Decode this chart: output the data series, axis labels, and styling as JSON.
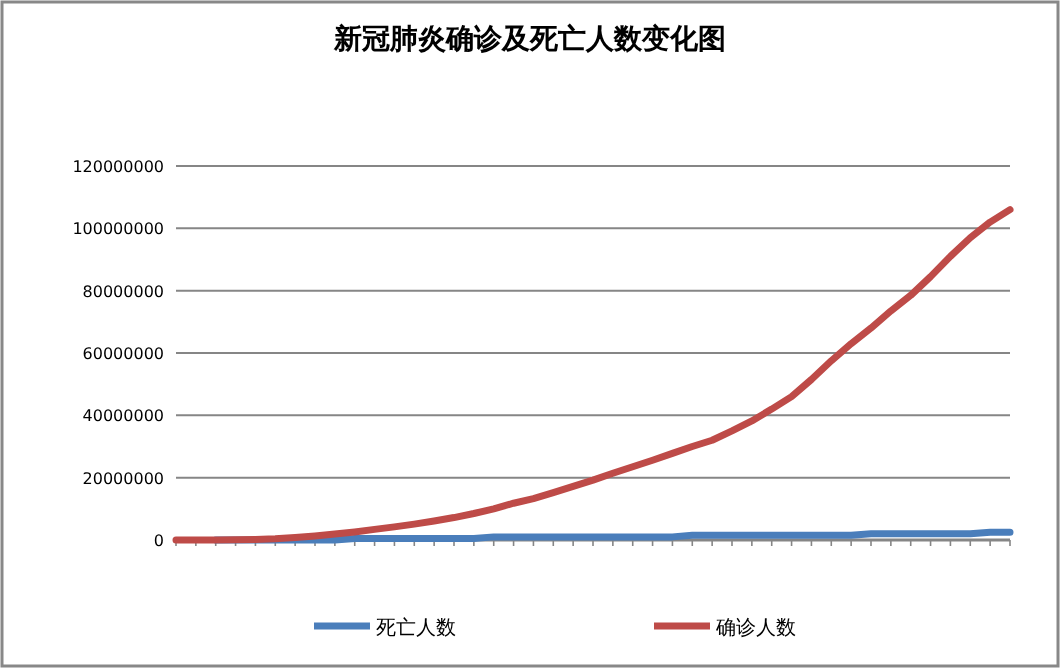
{
  "chart_data": {
    "type": "line",
    "title": "新冠肺炎确诊及死亡人数变化图",
    "categories": [
      null,
      null,
      null,
      null,
      null,
      null,
      null,
      null,
      null,
      null,
      null,
      null,
      null,
      null,
      null,
      null,
      null,
      null,
      null,
      null,
      null,
      null,
      null,
      null,
      null,
      null,
      null,
      null,
      null,
      null,
      null,
      null,
      null,
      null,
      null,
      null,
      null,
      null,
      null,
      null,
      null,
      null,
      null
    ],
    "series": [
      {
        "name": "死亡人数",
        "color": "#4a7ebb",
        "values": [
          null,
          null,
          0,
          0,
          0,
          0,
          0,
          0,
          0,
          500000,
          500000,
          500000,
          500000,
          500000,
          500000,
          500000,
          1000000,
          1000000,
          1000000,
          1000000,
          1000000,
          1000000,
          1000000,
          1000000,
          1000000,
          1000000,
          1500000,
          1500000,
          1500000,
          1500000,
          1500000,
          1500000,
          1500000,
          1500000,
          1500000,
          2000000,
          2000000,
          2000000,
          2000000,
          2000000,
          2000000,
          2500000,
          2500000
        ]
      },
      {
        "name": "确诊人数",
        "color": "#be4b48",
        "values": [
          0,
          0,
          0,
          100000,
          200000,
          400000,
          800000,
          1300000,
          1900000,
          2600000,
          3400000,
          4200000,
          5100000,
          6100000,
          7200000,
          8500000,
          10000000,
          11800000,
          13300000,
          15200000,
          17200000,
          19200000,
          21400000,
          23500000,
          25600000,
          27800000,
          30000000,
          32000000,
          35000000,
          38200000,
          42000000,
          46000000,
          51500000,
          57500000,
          63000000,
          68000000,
          73500000,
          78500000,
          84500000,
          91000000,
          97000000,
          102000000,
          106000000
        ]
      }
    ],
    "ylim": [
      0,
      120000000
    ],
    "yticks": [
      0,
      20000000,
      40000000,
      60000000,
      80000000,
      100000000,
      120000000
    ],
    "grid": "y",
    "legend": "bottom",
    "marker": "none",
    "line_style": "solid"
  }
}
